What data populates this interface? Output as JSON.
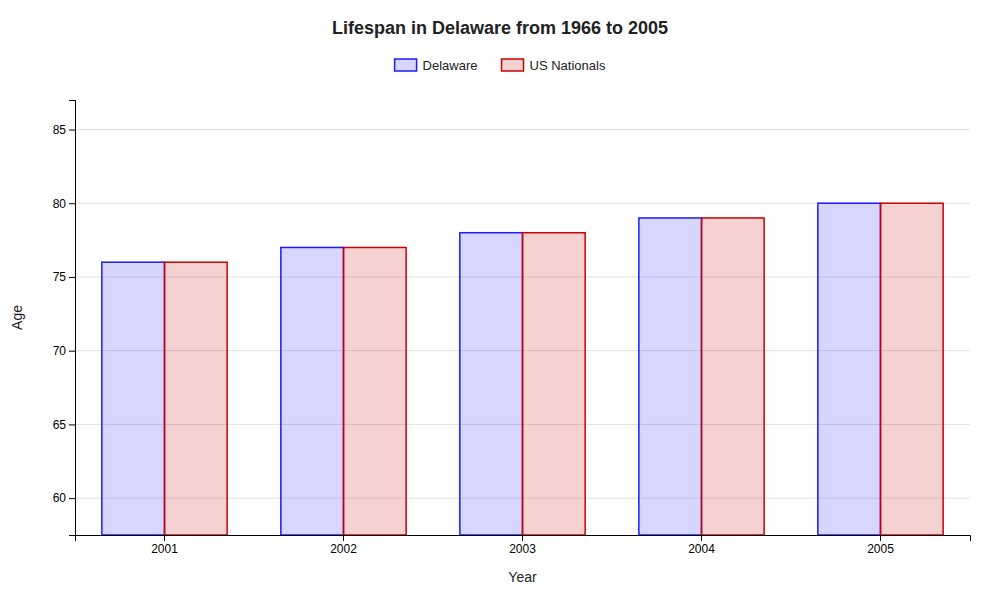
{
  "chart_data": {
    "type": "bar",
    "title": "Lifespan in Delaware from 1966 to 2005",
    "xlabel": "Year",
    "ylabel": "Age",
    "categories": [
      "2001",
      "2002",
      "2003",
      "2004",
      "2005"
    ],
    "series": [
      {
        "name": "Delaware",
        "color": "#1a1aff",
        "values": [
          76,
          77,
          78,
          79,
          80
        ]
      },
      {
        "name": "US Nationals",
        "color": "#cc0000",
        "values": [
          76,
          77,
          78,
          79,
          80
        ]
      }
    ],
    "ylim": [
      57.5,
      87
    ],
    "yticks": [
      60,
      65,
      70,
      75,
      80,
      85
    ],
    "grid": true,
    "legend": "top"
  }
}
